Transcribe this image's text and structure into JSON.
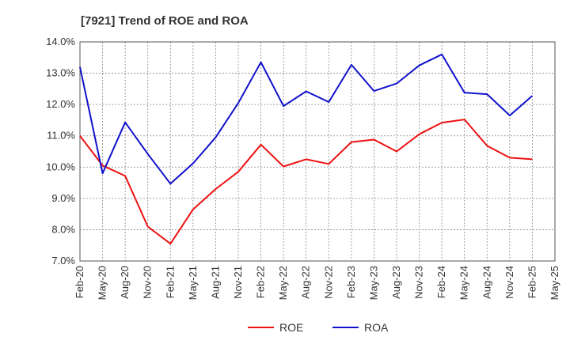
{
  "chart_data": {
    "type": "line",
    "title": "[7921]  Trend of ROE and ROA",
    "xlabel": "",
    "ylabel": "",
    "categories": [
      "Feb-20",
      "May-20",
      "Aug-20",
      "Nov-20",
      "Feb-21",
      "May-21",
      "Aug-21",
      "Nov-21",
      "Feb-22",
      "May-22",
      "Aug-22",
      "Nov-22",
      "Feb-23",
      "May-23",
      "Aug-23",
      "Nov-23",
      "Feb-24",
      "May-24",
      "Aug-24",
      "Nov-24",
      "Feb-25",
      "May-25"
    ],
    "ylim": [
      7.0,
      14.0
    ],
    "yticks": [
      "7.0%",
      "8.0%",
      "9.0%",
      "10.0%",
      "11.0%",
      "12.0%",
      "13.0%",
      "14.0%"
    ],
    "grid": true,
    "legend_position": "bottom",
    "series": [
      {
        "name": "ROE",
        "color": "#ee1111",
        "values": [
          11.0,
          10.05,
          9.72,
          8.1,
          7.55,
          8.65,
          9.3,
          9.85,
          10.72,
          10.02,
          10.25,
          10.1,
          10.8,
          10.88,
          10.5,
          11.05,
          11.42,
          11.52,
          10.68,
          10.3,
          10.25,
          null
        ]
      },
      {
        "name": "ROA",
        "color": "#1111cc",
        "values": [
          13.2,
          9.8,
          11.43,
          10.42,
          9.47,
          10.12,
          10.95,
          12.05,
          13.35,
          11.95,
          12.42,
          12.08,
          13.27,
          12.43,
          12.67,
          13.25,
          13.6,
          12.38,
          12.33,
          11.65,
          12.28,
          null
        ]
      }
    ]
  }
}
